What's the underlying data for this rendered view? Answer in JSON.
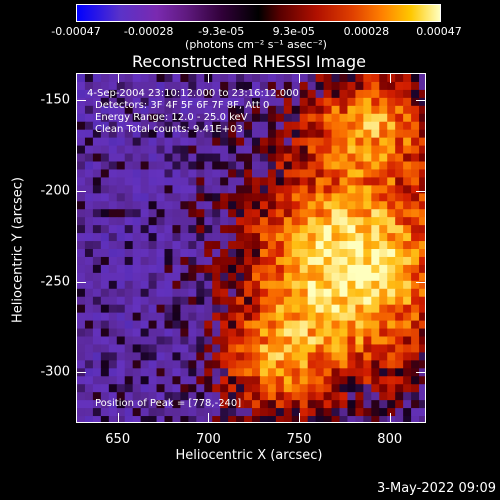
{
  "colorbar": {
    "tick_labels": [
      "-0.00047",
      "-0.00028",
      "-9.3e-05",
      "9.3e-05",
      "0.00028",
      "0.00047"
    ],
    "units": "(photons cm⁻² s⁻¹ asec⁻²)"
  },
  "plot": {
    "title": "Reconstructed RHESSI Image",
    "xlabel": "Heliocentric X (arcsec)",
    "ylabel": "Heliocentric Y (arcsec)",
    "x_ticks": [
      "650",
      "700",
      "750",
      "800"
    ],
    "y_ticks": [
      "-150",
      "-200",
      "-250",
      "-300"
    ]
  },
  "annotations": {
    "time_range": "4-Sep-2004 23:10:12.000 to 23:16:12.000",
    "detectors": "Detectors: 3F 4F 5F 6F 7F 8F, Att 0",
    "energy": "Energy Range: 12.0 - 25.0 keV",
    "clean": "Clean     Total counts: 9.41E+03",
    "peak": "Position of Peak = [778,-240]"
  },
  "footer": {
    "date": "3-May-2022 09:09"
  },
  "chart_data": {
    "type": "heatmap",
    "title": "Reconstructed RHESSI Image",
    "xlabel": "Heliocentric X (arcsec)",
    "ylabel": "Heliocentric Y (arcsec)",
    "xlim": [
      627,
      820
    ],
    "ylim": [
      -328,
      -135
    ],
    "x_ticks": [
      650,
      700,
      750,
      800
    ],
    "y_ticks": [
      -150,
      -200,
      -250,
      -300
    ],
    "colorbar_range": [
      -0.00047,
      0.00047
    ],
    "colorbar_ticks": [
      -0.00047,
      -0.00028,
      -9.3e-05,
      9.3e-05,
      0.00028,
      0.00047
    ],
    "peak": [
      778,
      -240
    ],
    "colors": {
      "low": "#0000ff",
      "mid": "#000000",
      "high": "#ffffc0"
    }
  }
}
